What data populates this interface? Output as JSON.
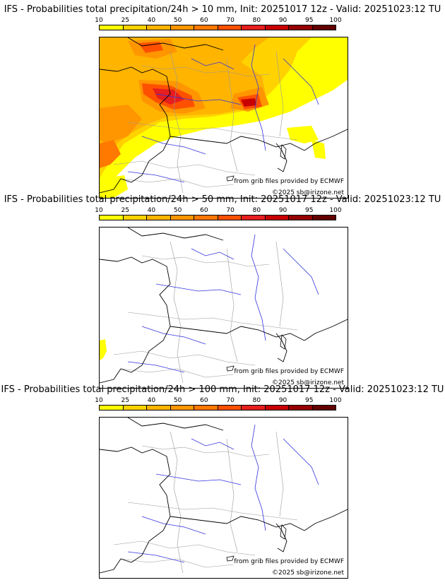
{
  "colorbar": {
    "ticks": [
      "10",
      "25",
      "40",
      "50",
      "60",
      "70",
      "80",
      "90",
      "95",
      "100"
    ],
    "colors": [
      "#ffff00",
      "#ffd200",
      "#ffb400",
      "#ff9600",
      "#ff7800",
      "#ff5000",
      "#e61e1e",
      "#c80000",
      "#960000",
      "#640000"
    ]
  },
  "panels": [
    {
      "title": "IFS - Probabilities total precipitation/24h > 10 mm, Init: 20251017 12z - Valid: 20251023:12 TU",
      "threshold_mm": 10,
      "credit_source": "from grib files provided by ECMWF",
      "credit_copyright": "©2025 sb@irizone.net"
    },
    {
      "title": "IFS - Probabilities total precipitation/24h > 50 mm, Init: 20251017 12z - Valid: 20251023:12 TU",
      "threshold_mm": 50,
      "credit_source": "from grib files provided by ECMWF",
      "credit_copyright": "©2025 sb@irizone.net"
    },
    {
      "title": "IFS - Probabilities total precipitation/24h > 100 mm, Init: 20251017 12z - Valid: 20251023:12 TU",
      "threshold_mm": 100,
      "credit_source": "from grib files provided by ECMWF",
      "credit_copyright": "©2025 sb@irizone.net"
    }
  ],
  "colors": {
    "coast": "#000000",
    "rivers": "#3333dd",
    "borders": "#999999"
  }
}
